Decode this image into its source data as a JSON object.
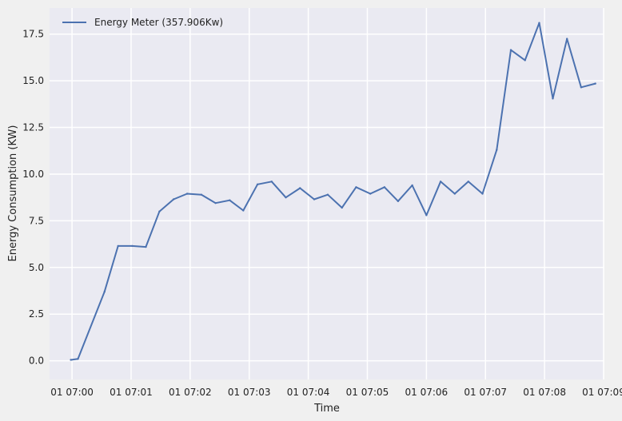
{
  "chart_data": {
    "type": "line",
    "title": "",
    "xlabel": "Time",
    "ylabel": "Energy Consumption (KW)",
    "xlim_minutes": [
      -0.38,
      9.0
    ],
    "ylim": [
      -1.0,
      18.9
    ],
    "x_ticks": [
      {
        "value": 0,
        "label": "01 07:00"
      },
      {
        "value": 1,
        "label": "01 07:01"
      },
      {
        "value": 2,
        "label": "01 07:02"
      },
      {
        "value": 3,
        "label": "01 07:03"
      },
      {
        "value": 4,
        "label": "01 07:04"
      },
      {
        "value": 5,
        "label": "01 07:05"
      },
      {
        "value": 6,
        "label": "01 07:06"
      },
      {
        "value": 7,
        "label": "01 07:07"
      },
      {
        "value": 8,
        "label": "01 07:08"
      },
      {
        "value": 9,
        "label": "01 07:09"
      }
    ],
    "y_ticks": [
      0.0,
      2.5,
      5.0,
      7.5,
      10.0,
      12.5,
      15.0,
      17.5
    ],
    "y_tick_labels": [
      "0.0",
      "2.5",
      "5.0",
      "7.5",
      "10.0",
      "12.5",
      "15.0",
      "17.5"
    ],
    "grid": true,
    "legend": {
      "position": "top-left",
      "entries": [
        "Energy Meter (357.906Kw)"
      ]
    },
    "series": [
      {
        "name": "Energy Meter (357.906Kw)",
        "color": "#4c72b0",
        "x_minutes": [
          -0.02,
          0.1,
          0.55,
          0.78,
          1.02,
          1.25,
          1.48,
          1.72,
          1.95,
          2.19,
          2.43,
          2.67,
          2.9,
          3.14,
          3.38,
          3.62,
          3.86,
          4.1,
          4.33,
          4.57,
          4.81,
          5.05,
          5.29,
          5.52,
          5.76,
          6.0,
          6.24,
          6.48,
          6.71,
          6.95,
          7.19,
          7.43,
          7.67,
          7.91,
          8.14,
          8.38,
          8.62,
          8.86
        ],
        "y": [
          0.05,
          0.1,
          3.7,
          6.15,
          6.15,
          6.1,
          8.0,
          8.65,
          8.95,
          8.9,
          8.45,
          8.6,
          8.05,
          9.45,
          9.6,
          8.75,
          9.25,
          8.65,
          8.9,
          8.2,
          9.3,
          8.95,
          9.3,
          8.55,
          9.4,
          7.8,
          9.6,
          8.95,
          9.6,
          8.95,
          11.3,
          16.65,
          16.1,
          18.1,
          14.05,
          17.25,
          14.65,
          14.85
        ]
      }
    ]
  }
}
